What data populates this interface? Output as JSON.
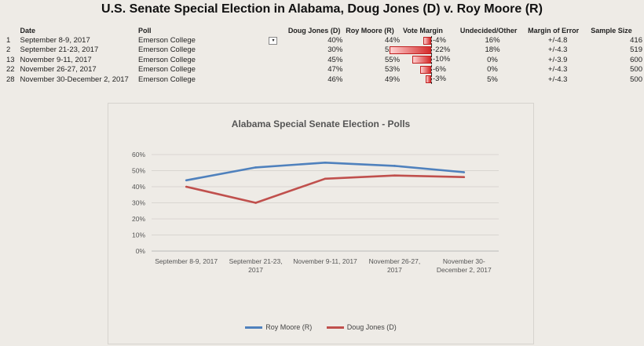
{
  "page_title": "U.S. Senate Special Election in Alabama, Doug Jones (D) v. Roy Moore (R)",
  "table": {
    "headers": {
      "date": "Date",
      "poll": "Poll",
      "doug_jones": "Doug Jones (D)",
      "roy_moore": "Roy Moore (R)",
      "vote_margin": "Vote Margin",
      "undecided": "Undecided/Other",
      "margin_of_error": "Margin of Error",
      "sample_size": "Sample Size"
    },
    "rows": [
      {
        "idx": "1",
        "date": "September 8-9, 2017",
        "poll": "Emerson College",
        "dj": "40%",
        "rm": "44%",
        "margin": "-4%",
        "margin_value": -4,
        "und": "16%",
        "moe": "+/-4.8",
        "ss": "416"
      },
      {
        "idx": "2",
        "date": "September 21-23, 2017",
        "poll": "Emerson College",
        "dj": "30%",
        "rm": "52%",
        "margin": "-22%",
        "margin_value": -22,
        "und": "18%",
        "moe": "+/-4.3",
        "ss": "519"
      },
      {
        "idx": "13",
        "date": "November 9-11, 2017",
        "poll": "Emerson College",
        "dj": "45%",
        "rm": "55%",
        "margin": "-10%",
        "margin_value": -10,
        "und": "0%",
        "moe": "+/-3.9",
        "ss": "600"
      },
      {
        "idx": "22",
        "date": "November 26-27, 2017",
        "poll": "Emerson College",
        "dj": "47%",
        "rm": "53%",
        "margin": "-6%",
        "margin_value": -6,
        "und": "0%",
        "moe": "+/-4.3",
        "ss": "500"
      },
      {
        "idx": "28",
        "date": "November 30-December 2, 2017",
        "poll": "Emerson College",
        "dj": "46%",
        "rm": "49%",
        "margin": "-3%",
        "margin_value": -3,
        "und": "5%",
        "moe": "+/-4.3",
        "ss": "500"
      }
    ]
  },
  "filter_icon": "dropdown-filter-icon",
  "colors": {
    "roy_moore": "#4f81bd",
    "doug_jones": "#c0504d",
    "margin_bar": "#d42a2a"
  },
  "chart_data": {
    "type": "line",
    "title": "Alabama Special Senate Election - Polls",
    "categories": [
      "September 8-9, 2017",
      "September 21-23, 2017",
      "November 9-11, 2017",
      "November 26-27, 2017",
      "November 30-December 2, 2017"
    ],
    "category_labels": [
      [
        "September 8-9, 2017"
      ],
      [
        "September 21-23,",
        "2017"
      ],
      [
        "November 9-11, 2017"
      ],
      [
        "November 26-27,",
        "2017"
      ],
      [
        "November 30-",
        "December 2, 2017"
      ]
    ],
    "series": [
      {
        "name": "Roy Moore (R)",
        "values": [
          44,
          52,
          55,
          53,
          49
        ]
      },
      {
        "name": "Doug Jones (D)",
        "values": [
          40,
          30,
          45,
          47,
          46
        ]
      }
    ],
    "ylim": [
      0,
      60
    ],
    "yticks": [
      "0%",
      "10%",
      "20%",
      "30%",
      "40%",
      "50%",
      "60%"
    ],
    "xlabel": "",
    "ylabel": "",
    "grid": true,
    "legend": "bottom"
  }
}
